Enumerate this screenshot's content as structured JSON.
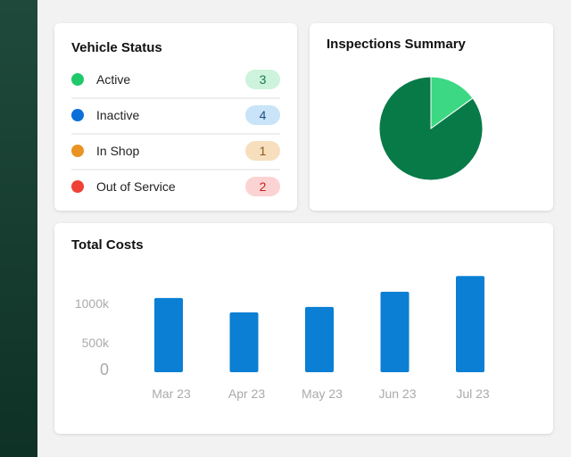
{
  "vehicle_status": {
    "title": "Vehicle Status",
    "items": [
      {
        "label": "Active",
        "count": "3",
        "dot": "#1fc96b",
        "badge_bg": "#cdf3dc",
        "badge_fg": "#177a45"
      },
      {
        "label": "Inactive",
        "count": "4",
        "dot": "#0b6fd8",
        "badge_bg": "#c9e4f8",
        "badge_fg": "#1d4e85"
      },
      {
        "label": "In Shop",
        "count": "1",
        "dot": "#e89322",
        "badge_bg": "#f7dfbd",
        "badge_fg": "#8a5a1c"
      },
      {
        "label": "Out of Service",
        "count": "2",
        "dot": "#ef4136",
        "badge_bg": "#fcd3d3",
        "badge_fg": "#c42020"
      }
    ]
  },
  "inspections": {
    "title": "Inspections Summary",
    "chart_data": {
      "type": "pie",
      "values": [
        15,
        85
      ],
      "colors": [
        "#3dd883",
        "#087a48"
      ]
    }
  },
  "costs": {
    "title": "Total Costs",
    "chart_data": {
      "type": "bar",
      "categories": [
        "Mar 23",
        "Apr 23",
        "May 23",
        "Jun 23",
        "Jul 23"
      ],
      "values": [
        1080,
        870,
        950,
        1170,
        1400
      ],
      "unit": "k",
      "yticks": [
        "0",
        "500k",
        "1000k"
      ],
      "color": "#0a7fd3"
    }
  }
}
